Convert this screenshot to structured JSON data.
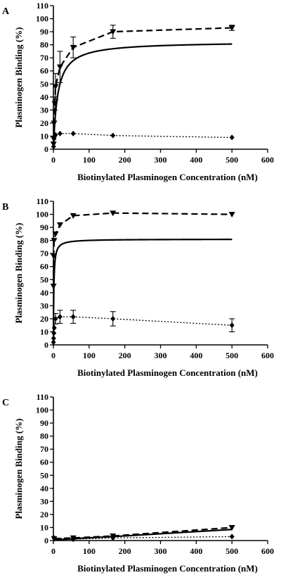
{
  "chart_data": [
    {
      "panel_label": "A",
      "type": "line",
      "xlabel": "Biotinylated Plasminogen Concentration (nM)",
      "ylabel": "Plasminogen Binding (%)",
      "xlim": [
        0,
        600
      ],
      "ylim": [
        0,
        110
      ],
      "xticks": [
        0,
        100,
        200,
        300,
        400,
        500,
        600
      ],
      "yticks": [
        0,
        10,
        20,
        30,
        40,
        50,
        60,
        70,
        80,
        90,
        100,
        110
      ],
      "grid": false,
      "series": [
        {
          "style": "dashed",
          "marker": "triangle-down",
          "points": [
            {
              "x": 0.5,
              "y": 4
            },
            {
              "x": 1,
              "y": 8
            },
            {
              "x": 2,
              "y": 20
            },
            {
              "x": 4,
              "y": 35,
              "err": 5
            },
            {
              "x": 6,
              "y": 48,
              "err": 10
            },
            {
              "x": 18.5,
              "y": 63,
              "err": 12
            },
            {
              "x": 55.5,
              "y": 78,
              "err": 8
            },
            {
              "x": 166.7,
              "y": 90,
              "err": 5
            },
            {
              "x": 500,
              "y": 93,
              "err": 2
            }
          ]
        },
        {
          "style": "solid",
          "marker": "none",
          "fit": {
            "bmax": 82.5,
            "kd": 12
          }
        },
        {
          "style": "dotted",
          "marker": "diamond",
          "points": [
            {
              "x": 0.5,
              "y": 2
            },
            {
              "x": 2,
              "y": 8
            },
            {
              "x": 6,
              "y": 11
            },
            {
              "x": 18.5,
              "y": 12
            },
            {
              "x": 55.5,
              "y": 12
            },
            {
              "x": 166.7,
              "y": 10.5
            },
            {
              "x": 500,
              "y": 9
            }
          ]
        }
      ]
    },
    {
      "panel_label": "B",
      "type": "line",
      "xlabel": "Biotinylated Plasminogen Concentration (nM)",
      "ylabel": "Plasminogen Binding (%)",
      "xlim": [
        0,
        600
      ],
      "ylim": [
        0,
        110
      ],
      "xticks": [
        0,
        100,
        200,
        300,
        400,
        500,
        600
      ],
      "yticks": [
        0,
        10,
        20,
        30,
        40,
        50,
        60,
        70,
        80,
        90,
        100,
        110
      ],
      "grid": false,
      "series": [
        {
          "style": "dashed",
          "marker": "triangle-down",
          "points": [
            {
              "x": 0.2,
              "y": 45
            },
            {
              "x": 0.7,
              "y": 68
            },
            {
              "x": 2,
              "y": 80
            },
            {
              "x": 6,
              "y": 85
            },
            {
              "x": 18.5,
              "y": 92
            },
            {
              "x": 55.5,
              "y": 99
            },
            {
              "x": 166.7,
              "y": 101
            },
            {
              "x": 500,
              "y": 100
            }
          ]
        },
        {
          "style": "solid",
          "marker": "none",
          "fit": {
            "bmax": 81,
            "kd": 1.2
          }
        },
        {
          "style": "dotted",
          "marker": "diamond",
          "points": [
            {
              "x": 0.2,
              "y": 2
            },
            {
              "x": 0.7,
              "y": 5
            },
            {
              "x": 1.5,
              "y": 9
            },
            {
              "x": 2.5,
              "y": 13
            },
            {
              "x": 6,
              "y": 20,
              "err": 4
            },
            {
              "x": 18.5,
              "y": 21.5,
              "err": 5
            },
            {
              "x": 55.5,
              "y": 21.5,
              "err": 5
            },
            {
              "x": 166.7,
              "y": 20,
              "err": 5.5
            },
            {
              "x": 500,
              "y": 15,
              "err": 5
            }
          ]
        }
      ]
    },
    {
      "panel_label": "C",
      "type": "line",
      "xlabel": "Biotinylated Plasminogen Concentration (nM)",
      "ylabel": "Plasminogen Binding (%)",
      "xlim": [
        0,
        600
      ],
      "ylim": [
        0,
        110
      ],
      "xticks": [
        0,
        100,
        200,
        300,
        400,
        500,
        600
      ],
      "yticks": [
        0,
        10,
        20,
        30,
        40,
        50,
        60,
        70,
        80,
        90,
        100,
        110
      ],
      "grid": false,
      "series": [
        {
          "style": "dashed",
          "marker": "triangle-down",
          "points": [
            {
              "x": 2,
              "y": 1.5
            },
            {
              "x": 55.5,
              "y": 2
            },
            {
              "x": 166.7,
              "y": 3.5
            },
            {
              "x": 500,
              "y": 10
            }
          ]
        },
        {
          "style": "solid",
          "marker": "none",
          "points": [
            {
              "x": 0,
              "y": 0.2
            },
            {
              "x": 55.5,
              "y": 1.5
            },
            {
              "x": 166.7,
              "y": 3
            },
            {
              "x": 500,
              "y": 8.5
            }
          ]
        },
        {
          "style": "dotted",
          "marker": "diamond",
          "points": [
            {
              "x": 2,
              "y": 2
            },
            {
              "x": 55.5,
              "y": 1
            },
            {
              "x": 166.7,
              "y": 2
            },
            {
              "x": 500,
              "y": 3
            }
          ]
        }
      ]
    }
  ]
}
